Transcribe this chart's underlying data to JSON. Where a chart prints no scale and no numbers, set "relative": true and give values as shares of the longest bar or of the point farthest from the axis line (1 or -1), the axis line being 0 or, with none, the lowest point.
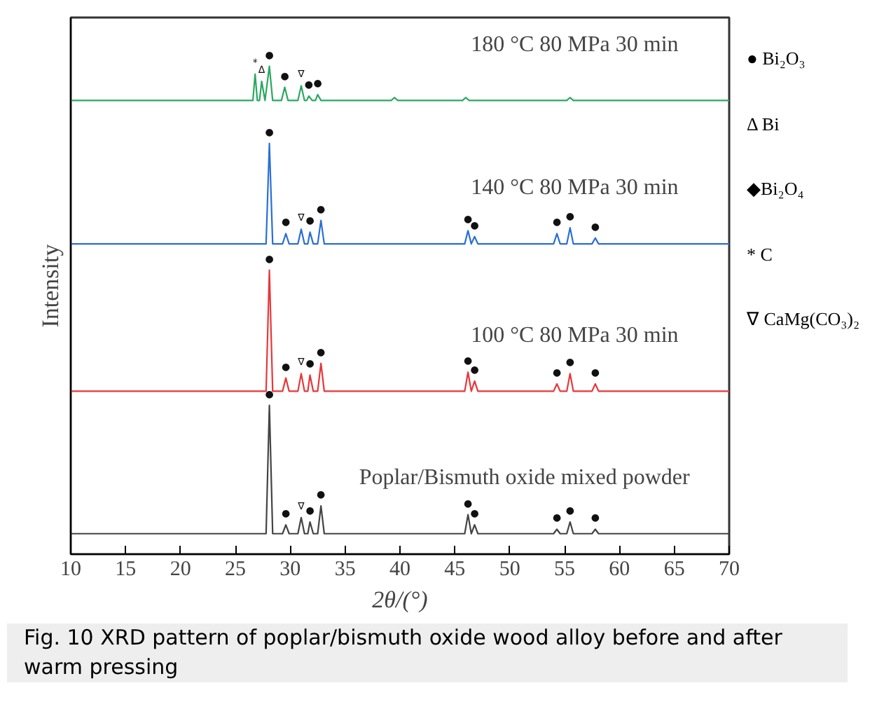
{
  "chart_data": {
    "type": "line",
    "relative": true,
    "xlabel": "2θ/(°)",
    "ylabel": "Intensity",
    "xlim": [
      10,
      70
    ],
    "xticks": [
      10,
      15,
      20,
      25,
      30,
      35,
      40,
      45,
      50,
      55,
      60,
      65,
      70
    ],
    "legend": false,
    "grid": false,
    "x": [
      10,
      20,
      27.8,
      28.1,
      28.4,
      29.3,
      29.6,
      29.9,
      30.7,
      31.0,
      31.3,
      31.6,
      31.8,
      32.1,
      32.5,
      32.8,
      33.1,
      40,
      45.9,
      46.2,
      46.5,
      46.8,
      47.1,
      54.0,
      54.3,
      54.6,
      55.2,
      55.5,
      55.8,
      57.5,
      57.8,
      58.1,
      70
    ],
    "series": [
      {
        "name": "180 °C  80 MPa  30 min",
        "color": "#2aa860",
        "x": [
          10,
          20,
          26.6,
          26.8,
          27.0,
          27.2,
          27.4,
          27.7,
          28.1,
          28.4,
          29.2,
          29.5,
          29.8,
          30.7,
          31.0,
          31.3,
          31.5,
          31.7,
          32.0,
          32.3,
          32.5,
          32.8,
          39.2,
          39.5,
          39.8,
          45.7,
          46.0,
          46.3,
          55.2,
          55.5,
          55.8,
          70
        ],
        "values": [
          0.93,
          0.93,
          0.93,
          0.984,
          0.93,
          0.93,
          0.969,
          0.93,
          1.0,
          0.93,
          0.93,
          0.957,
          0.93,
          0.93,
          0.96,
          0.93,
          0.93,
          0.939,
          0.93,
          0.93,
          0.942,
          0.93,
          0.93,
          0.936,
          0.93,
          0.93,
          0.936,
          0.93,
          0.93,
          0.936,
          0.93,
          0.93
        ]
      },
      {
        "name": "140 °C  80 MPa  30 min",
        "color": "#2a6fd6",
        "values": [
          0.636,
          0.636,
          0.636,
          0.842,
          0.636,
          0.636,
          0.657,
          0.636,
          0.636,
          0.666,
          0.636,
          0.636,
          0.66,
          0.636,
          0.636,
          0.684,
          0.636,
          0.636,
          0.636,
          0.663,
          0.636,
          0.651,
          0.636,
          0.636,
          0.657,
          0.636,
          0.636,
          0.669,
          0.636,
          0.636,
          0.648,
          0.636,
          0.636
        ]
      },
      {
        "name": "100 °C  80 MPa  30 min",
        "color": "#e8373a",
        "values": [
          0.334,
          0.334,
          0.334,
          0.582,
          0.334,
          0.334,
          0.361,
          0.334,
          0.334,
          0.37,
          0.334,
          0.334,
          0.367,
          0.334,
          0.334,
          0.391,
          0.334,
          0.334,
          0.334,
          0.373,
          0.334,
          0.355,
          0.334,
          0.334,
          0.349,
          0.334,
          0.334,
          0.37,
          0.334,
          0.334,
          0.349,
          0.334,
          0.334
        ]
      },
      {
        "name": "Poplar/Bismuth oxide mixed powder",
        "color": "#444444",
        "values": [
          0.042,
          0.042,
          0.042,
          0.305,
          0.042,
          0.042,
          0.06,
          0.042,
          0.042,
          0.075,
          0.042,
          0.042,
          0.066,
          0.042,
          0.042,
          0.099,
          0.042,
          0.042,
          0.042,
          0.081,
          0.042,
          0.06,
          0.042,
          0.042,
          0.051,
          0.042,
          0.042,
          0.066,
          0.042,
          0.042,
          0.051,
          0.042,
          0.042
        ]
      }
    ],
    "annotations": [
      "● Bi₂O₃",
      "Δ Bi",
      "◆Bi₂O₄",
      "* C",
      "∇ CaMg(CO₃)₂",
      "Fig. 10  XRD pattern of poplar/bismuth oxide wood alloy before and after warm pressing",
      {
        "text": "*",
        "x": 26.8,
        "y": 0.984
      },
      {
        "text": "Δ",
        "x": 27.4,
        "y": 0.969
      },
      {
        "text": "●",
        "x": 28.1,
        "y": 1.0
      },
      {
        "text": "●",
        "x": 29.5,
        "y": 0.957
      },
      {
        "text": "∇",
        "x": 31.0,
        "y": 0.96
      },
      {
        "text": "●",
        "x": 31.7,
        "y": 0.939
      },
      {
        "text": "●",
        "x": 32.5,
        "y": 0.942
      },
      {
        "text": "●",
        "x": 28.1,
        "y": 0.842
      },
      {
        "text": "●",
        "x": 29.6,
        "y": 0.657
      },
      {
        "text": "∇",
        "x": 31.0,
        "y": 0.666
      },
      {
        "text": "●",
        "x": 31.8,
        "y": 0.66
      },
      {
        "text": "●",
        "x": 32.8,
        "y": 0.684
      },
      {
        "text": "●",
        "x": 46.2,
        "y": 0.663
      },
      {
        "text": "●",
        "x": 46.8,
        "y": 0.651
      },
      {
        "text": "●",
        "x": 54.3,
        "y": 0.657
      },
      {
        "text": "●",
        "x": 55.5,
        "y": 0.669
      },
      {
        "text": "●",
        "x": 57.8,
        "y": 0.648
      },
      {
        "text": "●",
        "x": 28.1,
        "y": 0.582
      },
      {
        "text": "●",
        "x": 29.6,
        "y": 0.361
      },
      {
        "text": "∇",
        "x": 31.0,
        "y": 0.37
      },
      {
        "text": "●",
        "x": 31.8,
        "y": 0.367
      },
      {
        "text": "●",
        "x": 32.8,
        "y": 0.391
      },
      {
        "text": "●",
        "x": 46.2,
        "y": 0.373
      },
      {
        "text": "●",
        "x": 46.8,
        "y": 0.355
      },
      {
        "text": "●",
        "x": 54.3,
        "y": 0.349
      },
      {
        "text": "●",
        "x": 55.5,
        "y": 0.37
      },
      {
        "text": "●",
        "x": 57.8,
        "y": 0.349
      },
      {
        "text": "●",
        "x": 28.1,
        "y": 0.305
      },
      {
        "text": "●",
        "x": 29.6,
        "y": 0.06
      },
      {
        "text": "∇",
        "x": 31.0,
        "y": 0.075
      },
      {
        "text": "●",
        "x": 31.8,
        "y": 0.066
      },
      {
        "text": "●",
        "x": 32.8,
        "y": 0.099
      },
      {
        "text": "●",
        "x": 46.2,
        "y": 0.081
      },
      {
        "text": "●",
        "x": 46.8,
        "y": 0.06
      },
      {
        "text": "●",
        "x": 54.3,
        "y": 0.051
      },
      {
        "text": "●",
        "x": 55.5,
        "y": 0.066
      },
      {
        "text": "●",
        "x": 57.8,
        "y": 0.051
      }
    ]
  }
}
